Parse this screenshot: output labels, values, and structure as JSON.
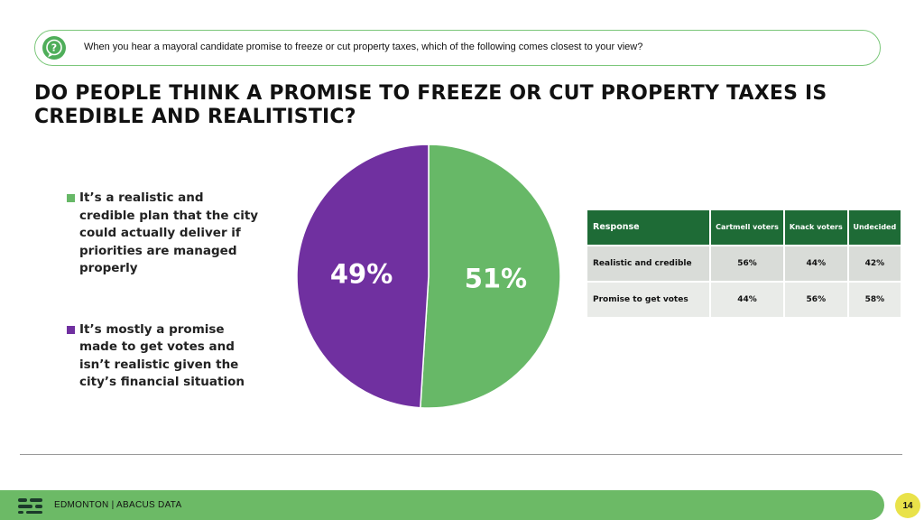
{
  "question": {
    "icon": "question-icon",
    "text": "When you hear a mayoral candidate promise to freeze or cut property taxes, which of the following comes closest to your view?"
  },
  "title": "DO PEOPLE THINK A PROMISE TO FREEZE OR CUT PROPERTY TAXES IS CREDIBLE AND REALITISTIC?",
  "colors": {
    "green": "#67b867",
    "purple": "#7030a0",
    "dark_green": "#1e6b36",
    "accent_yellow": "#e9e24a"
  },
  "chart_data": {
    "type": "pie",
    "slices": [
      {
        "label": "It’s a realistic and credible plan that the city could actually deliver if priorities are managed properly",
        "value": 51,
        "display": "51%",
        "color": "#67b867"
      },
      {
        "label": "It’s mostly a promise made to get votes and isn’t realistic given the city’s financial situation",
        "value": 49,
        "display": "49%",
        "color": "#7030a0"
      }
    ],
    "legend_placement": "left"
  },
  "table": {
    "headers": [
      "Response",
      "Cartmell voters",
      "Knack voters",
      "Undecided"
    ],
    "rows": [
      [
        "Realistic and credible",
        "56%",
        "44%",
        "42%"
      ],
      [
        "Promise to get votes",
        "44%",
        "56%",
        "58%"
      ]
    ]
  },
  "footer": {
    "logo": "abacus-logo-icon",
    "text": "EDMONTON  |  ABACUS DATA",
    "page": "14"
  }
}
